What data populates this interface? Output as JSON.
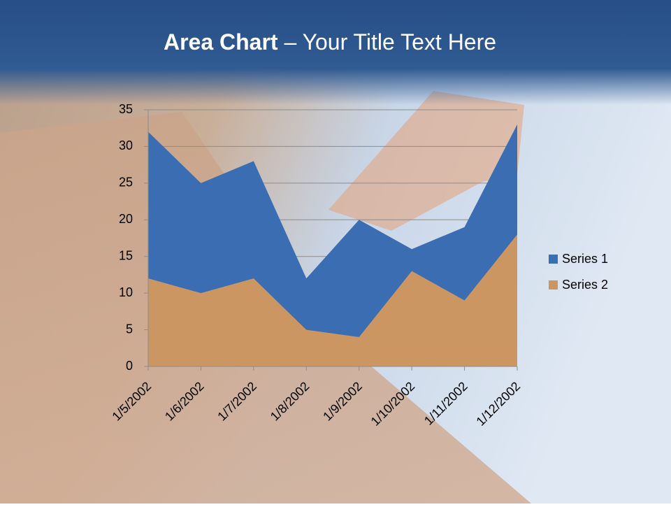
{
  "chart_data": {
    "type": "area",
    "title": "Area Chart",
    "subtitle": " – Your Title Text Here",
    "categories": [
      "1/5/2002",
      "1/6/2002",
      "1/7/2002",
      "1/8/2002",
      "1/9/2002",
      "1/10/2002",
      "1/11/2002",
      "1/12/2002"
    ],
    "series": [
      {
        "name": "Series 1",
        "color": "#3b6db3",
        "values": [
          32,
          25,
          28,
          12,
          20,
          16,
          19,
          33
        ]
      },
      {
        "name": "Series 2",
        "color": "#cc9663",
        "values": [
          12,
          10,
          12,
          5,
          4,
          13,
          9,
          18
        ]
      }
    ],
    "ylim": [
      0,
      35
    ],
    "yticks": [
      0,
      5,
      10,
      15,
      20,
      25,
      30,
      35
    ],
    "grid": true,
    "legend": "right"
  }
}
